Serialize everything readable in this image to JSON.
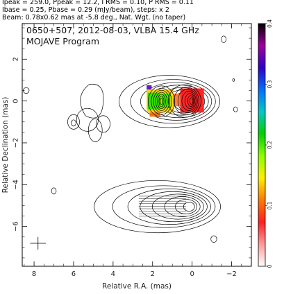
{
  "header": {
    "line1": "Ipeak = 259.0, Ppeak = 12.2, I RMS = 0.10, P RMS = 0.11",
    "line2": "Ibase = 0.25, Pbase = 0.29 (mJy/beam), steps: x 2",
    "line3": "Beam: 0.78x0.62 mas at -5.8 deg., Nat. Wgt. (no taper)"
  },
  "chart_data": {
    "type": "heatmap",
    "title": "0650+507, 2012-08-03, VLBA 15.4 GHz",
    "subtitle": "MOJAVE Program",
    "xlabel": "Relative R.A. (mas)",
    "ylabel": "Relative Declination (mas)",
    "xlim": [
      8.6,
      -3.0
    ],
    "ylim": [
      -7.9,
      3.7
    ],
    "x_ticks": [
      {
        "value": 8,
        "label": "8"
      },
      {
        "value": 6,
        "label": "6"
      },
      {
        "value": 4,
        "label": "4"
      },
      {
        "value": 2,
        "label": "2"
      },
      {
        "value": 0,
        "label": "0"
      },
      {
        "value": -2,
        "label": "−2"
      }
    ],
    "y_ticks": [
      {
        "value": 2,
        "label": "2"
      },
      {
        "value": 0,
        "label": "0"
      },
      {
        "value": -2,
        "label": "−2"
      },
      {
        "value": -4,
        "label": "−4"
      },
      {
        "value": -6,
        "label": "−6"
      }
    ],
    "colorbar": {
      "min": 0,
      "max": 0.4,
      "ticks": [
        {
          "value": 0,
          "label": "0"
        },
        {
          "value": 0.1,
          "label": "0.1"
        },
        {
          "value": 0.2,
          "label": "0.2"
        },
        {
          "value": 0.3,
          "label": "0.3"
        },
        {
          "value": 0.4,
          "label": "0.4"
        }
      ],
      "colors": [
        "#ffffff",
        "#ff9a9a",
        "#ff2020",
        "#ff7a00",
        "#ffee00",
        "#8cff00",
        "#00d000",
        "#00c8c8",
        "#0070ff",
        "#3000c8",
        "#a000a0",
        "#000000"
      ]
    },
    "upper_image": {
      "core": [
        0,
        0
      ],
      "contour_levels": 10,
      "outer_lobes": [
        [
          2.6,
          0.1
        ],
        [
          1.0,
          0.05
        ]
      ]
    },
    "lower_image": {
      "core": [
        0,
        -5.0
      ],
      "contour_levels": 8
    },
    "beam_marker": [
      7.8,
      -6.8
    ]
  }
}
